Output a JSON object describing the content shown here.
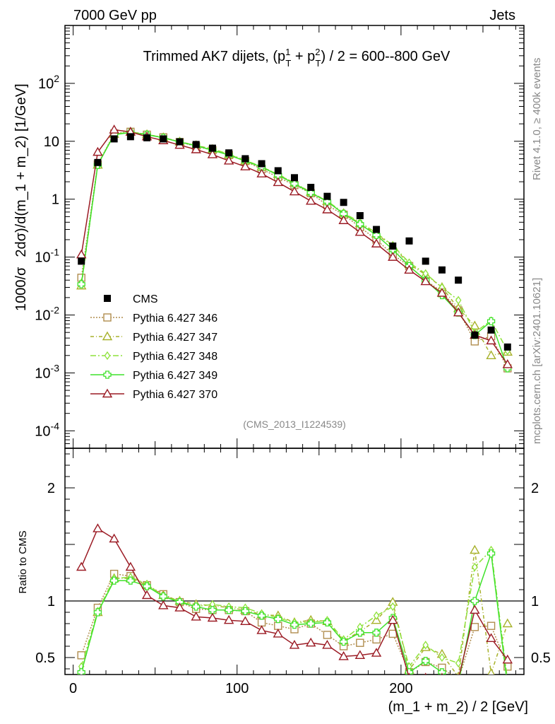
{
  "header": {
    "left": "7000 GeV pp",
    "right": "Jets",
    "side_rivet": "Rivet 4.1.0, ≥ 400k events",
    "side_site": "mcplots.cern.ch [arXiv:2401.10621]"
  },
  "colors": {
    "cms": "#000000",
    "p346": "#b08d4e",
    "p347": "#a7b12a",
    "p348": "#8ee23a",
    "p349": "#3fe22b",
    "p370": "#9b1b24"
  },
  "chart_data": {
    "type": "scatter",
    "title_line": "Trimmed AK7 dijets, (p_T^1 + p_T^2) / 2 = 600--800 GeV",
    "title_parts": {
      "prefix": "Trimmed AK7 dijets, (p",
      "sup1": "1",
      "subT1": "T",
      "mid": " + p",
      "sup2": "2",
      "subT2": "T",
      "suffix": ") / 2 = 600--800 GeV"
    },
    "ylabel": "1000/σ   2dσ)/d(m_1 + m_2) [1/GeV]",
    "ylabel_parts": {
      "a": "1000/σ",
      "b": "2dσ)/d(m_1 + m_2) [1/GeV]"
    },
    "xlabel": "(m_1 + m_2) / 2 [GeV]",
    "ratio_ylabel": "Ratio to CMS",
    "watermark": "(CMS_2013_I1224539)",
    "xlim": [
      -5,
      275
    ],
    "ylim": [
      5e-05,
      1000
    ],
    "ratio_ylim": [
      0.35,
      2.35
    ],
    "x_ticks": [
      "0",
      "100",
      "200"
    ],
    "x_tick_values": [
      0,
      100,
      200
    ],
    "y_ticks": [
      "10⁻⁴",
      "10⁻³",
      "10⁻²",
      "10⁻¹",
      "1",
      "10",
      "10²"
    ],
    "y_tick_values": [
      0.0001,
      0.001,
      0.01,
      0.1,
      1,
      10,
      100
    ],
    "y_tick_base": [
      "10",
      "10",
      "10",
      "10",
      "",
      "",
      "10"
    ],
    "y_tick_exp": [
      "-4",
      "-3",
      "-2",
      "-1",
      "",
      "",
      "2"
    ],
    "y_tick_plain": [
      "",
      "",
      "",
      "",
      "1",
      "10",
      ""
    ],
    "ratio_ticks": [
      "0.5",
      "1",
      "2"
    ],
    "ratio_tick_values": [
      0.5,
      1,
      2
    ],
    "x": [
      5,
      15,
      25,
      35,
      45,
      55,
      65,
      75,
      85,
      95,
      105,
      115,
      125,
      135,
      145,
      155,
      165,
      175,
      185,
      195,
      205,
      215,
      225,
      235,
      245,
      255,
      265
    ],
    "series": [
      {
        "name": "CMS",
        "key": "cms",
        "marker": "square",
        "dash": "",
        "legend": "CMS",
        "values": [
          0.085,
          4.3,
          11.0,
          12.0,
          11.5,
          11.0,
          9.8,
          8.8,
          7.6,
          6.3,
          5.0,
          4.1,
          3.1,
          2.35,
          1.6,
          1.12,
          0.88,
          0.52,
          0.3,
          0.155,
          0.19,
          0.085,
          0.06,
          0.04,
          0.0045,
          0.0055,
          0.0028
        ],
        "ratio": []
      },
      {
        "name": "Pythia 6.427 346",
        "key": "p346",
        "marker": "square-open",
        "dash": "2,2",
        "legend": "Pythia 6.427 346",
        "values": [
          0.044,
          4.0,
          13.6,
          14.6,
          13.0,
          11.7,
          9.7,
          8.2,
          7.0,
          5.8,
          4.55,
          3.3,
          2.4,
          1.75,
          1.27,
          0.79,
          0.54,
          0.33,
          0.2,
          0.11,
          0.07,
          0.04,
          0.025,
          0.012,
          0.0035,
          0.0043,
          0.0012
        ],
        "ratio": [
          0.52,
          0.94,
          1.24,
          1.22,
          1.14,
          1.06,
          0.99,
          0.93,
          0.92,
          0.92,
          0.91,
          0.81,
          0.78,
          0.75,
          0.8,
          0.7,
          0.6,
          0.63,
          0.66,
          0.71,
          0.37,
          0.46,
          0.41,
          0.3,
          0.77,
          0.78,
          0.42
        ]
      },
      {
        "name": "Pythia 6.427 347",
        "key": "p347",
        "marker": "triangle-open",
        "dash": "5,3,1,3",
        "legend": "Pythia 6.427 347",
        "values": [
          0.032,
          3.9,
          13.3,
          14.5,
          13.1,
          11.6,
          9.8,
          8.5,
          7.3,
          5.9,
          4.6,
          3.6,
          2.7,
          1.9,
          1.33,
          0.92,
          0.57,
          0.38,
          0.25,
          0.155,
          0.075,
          0.05,
          0.03,
          0.013,
          0.0065,
          0.002,
          0.0023
        ],
        "ratio": [
          0.37,
          0.9,
          1.2,
          1.2,
          1.14,
          1.05,
          1.0,
          0.97,
          0.96,
          0.94,
          0.92,
          0.88,
          0.87,
          0.81,
          0.83,
          0.82,
          0.65,
          0.73,
          0.83,
          0.99,
          0.39,
          0.59,
          0.53,
          0.33,
          1.45,
          0.36,
          0.8
        ]
      },
      {
        "name": "Pythia 6.427 348",
        "key": "p348",
        "marker": "diamond-open",
        "dash": "8,3,2,3",
        "legend": "Pythia 6.427 348",
        "values": [
          0.036,
          3.95,
          13.2,
          14.5,
          13.2,
          11.5,
          9.8,
          8.4,
          7.4,
          6.0,
          4.7,
          3.65,
          2.65,
          1.9,
          1.3,
          0.93,
          0.58,
          0.4,
          0.26,
          0.16,
          0.08,
          0.052,
          0.03,
          0.018,
          0.005,
          0.008,
          0.0024
        ],
        "ratio": [
          0.42,
          0.91,
          1.2,
          1.21,
          1.15,
          1.04,
          1.0,
          0.95,
          0.97,
          0.95,
          0.94,
          0.89,
          0.85,
          0.81,
          0.81,
          0.83,
          0.66,
          0.77,
          0.87,
          0.95,
          0.42,
          0.61,
          0.5,
          0.45,
          1.3,
          1.45,
          0.3
        ]
      },
      {
        "name": "Pythia 6.427 349",
        "key": "p349",
        "marker": "cross",
        "dash": "",
        "legend": "Pythia 6.427 349",
        "values": [
          0.034,
          3.9,
          13.0,
          14.2,
          13.0,
          11.5,
          9.7,
          8.4,
          7.0,
          5.8,
          4.55,
          3.6,
          2.6,
          1.85,
          1.29,
          0.91,
          0.56,
          0.37,
          0.24,
          0.135,
          0.07,
          0.04,
          0.022,
          0.011,
          0.0045,
          0.0078,
          0.0012
        ],
        "ratio": [
          0.37,
          0.9,
          1.18,
          1.18,
          1.13,
          1.04,
          0.99,
          0.95,
          0.92,
          0.92,
          0.91,
          0.87,
          0.84,
          0.79,
          0.8,
          0.81,
          0.64,
          0.72,
          0.72,
          0.85,
          0.37,
          0.47,
          0.37,
          0.27,
          1.0,
          1.42,
          0.25
        ]
      },
      {
        "name": "Pythia 6.427 370",
        "key": "p370",
        "marker": "triangle-open",
        "dash": "",
        "legend": "Pythia 6.427 370",
        "values": [
          0.11,
          6.5,
          15.8,
          14.5,
          12.0,
          10.3,
          8.6,
          7.2,
          5.9,
          4.6,
          3.65,
          2.75,
          1.95,
          1.35,
          0.93,
          0.66,
          0.43,
          0.27,
          0.17,
          0.1,
          0.06,
          0.038,
          0.024,
          0.011,
          0.0045,
          0.0036,
          0.0014
        ],
        "ratio": [
          1.3,
          1.64,
          1.55,
          1.3,
          1.05,
          0.96,
          0.94,
          0.86,
          0.85,
          0.83,
          0.82,
          0.74,
          0.71,
          0.61,
          0.63,
          0.61,
          0.51,
          0.52,
          0.54,
          0.83,
          0.32,
          0.32,
          0.32,
          0.31,
          0.92,
          0.67,
          0.48
        ]
      }
    ]
  }
}
